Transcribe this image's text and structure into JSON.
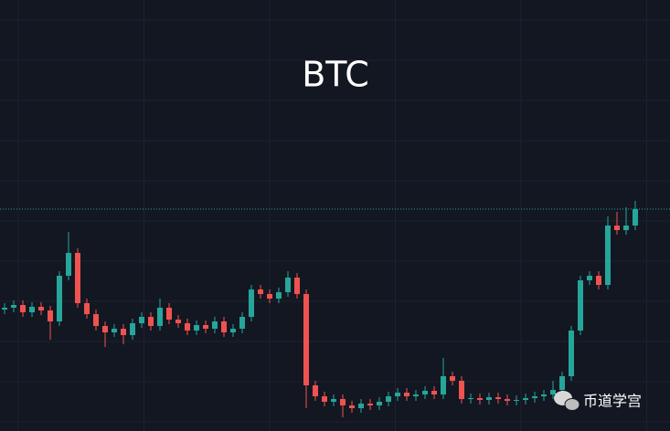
{
  "chart_data": {
    "type": "candlestick",
    "title": "BTC",
    "ylim": [
      0,
      472
    ],
    "up_color": "#26a69a",
    "down_color": "#ef5350",
    "price_line": 243,
    "price_line_color": "#26a69a",
    "open": [
      133,
      135,
      138,
      130,
      136,
      132,
      120,
      170,
      195,
      140,
      128,
      115,
      108,
      112,
      105,
      118,
      125,
      115,
      135,
      122,
      118,
      110,
      116,
      112,
      120,
      108,
      112,
      125,
      155,
      150,
      145,
      152,
      168,
      150,
      50,
      38,
      32,
      35,
      28,
      25,
      30,
      28,
      32,
      38,
      42,
      38,
      40,
      44,
      40,
      60,
      55,
      35,
      36,
      34,
      37,
      35,
      33,
      34,
      36,
      38,
      40,
      45,
      60,
      110,
      165,
      170,
      160,
      225,
      220,
      225
    ],
    "close": [
      135,
      138,
      130,
      136,
      132,
      120,
      170,
      195,
      140,
      128,
      115,
      108,
      112,
      105,
      118,
      125,
      115,
      135,
      122,
      118,
      110,
      116,
      112,
      120,
      108,
      112,
      125,
      155,
      150,
      145,
      152,
      168,
      150,
      50,
      38,
      32,
      35,
      28,
      25,
      30,
      28,
      32,
      38,
      42,
      38,
      40,
      44,
      40,
      60,
      55,
      35,
      36,
      34,
      37,
      35,
      33,
      34,
      36,
      38,
      40,
      45,
      60,
      110,
      165,
      170,
      160,
      225,
      220,
      225,
      243
    ],
    "high": [
      140,
      143,
      143,
      141,
      141,
      137,
      175,
      218,
      200,
      145,
      133,
      120,
      117,
      117,
      123,
      130,
      130,
      145,
      140,
      127,
      123,
      121,
      121,
      125,
      125,
      117,
      130,
      160,
      160,
      155,
      157,
      175,
      173,
      155,
      55,
      43,
      40,
      40,
      33,
      35,
      35,
      37,
      43,
      47,
      47,
      45,
      49,
      49,
      80,
      65,
      60,
      41,
      41,
      42,
      42,
      40,
      39,
      41,
      43,
      45,
      55,
      65,
      115,
      170,
      175,
      175,
      235,
      240,
      245,
      252
    ],
    "low": [
      128,
      130,
      125,
      125,
      127,
      100,
      115,
      165,
      135,
      123,
      110,
      92,
      103,
      95,
      100,
      113,
      110,
      110,
      117,
      113,
      105,
      105,
      107,
      107,
      103,
      103,
      107,
      120,
      145,
      140,
      140,
      147,
      145,
      25,
      33,
      27,
      27,
      15,
      20,
      20,
      23,
      23,
      27,
      33,
      33,
      33,
      35,
      35,
      35,
      50,
      30,
      30,
      29,
      29,
      30,
      28,
      28,
      29,
      31,
      33,
      35,
      40,
      55,
      105,
      160,
      155,
      155,
      215,
      215,
      220
    ]
  },
  "watermark": "币道学宫"
}
